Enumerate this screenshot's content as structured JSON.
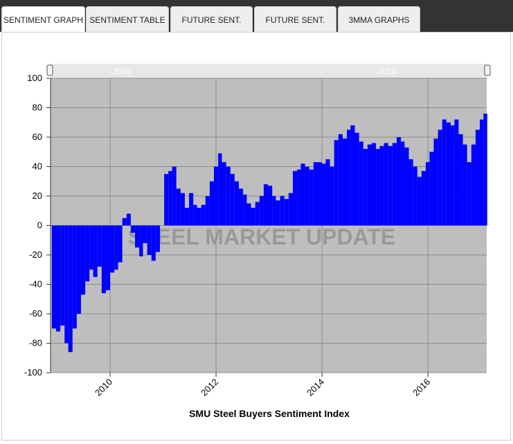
{
  "tabs": [
    "SENTIMENT GRAPH",
    "SENTIMENT TABLE",
    "FUTURE SENT.",
    "FUTURE SENT.",
    "3MMA GRAPHS"
  ],
  "chart_data": {
    "type": "bar",
    "title": "SMU Steel Buyers Sentiment Index",
    "watermark": "STEEL MARKET UPDATE",
    "navigator_ticks": [
      2010,
      2015
    ],
    "color": "#0000ff",
    "grid": true,
    "xlim": [
      2008.875,
      2017.11
    ],
    "xticks": [
      2010,
      2012,
      2014,
      2016
    ],
    "ylim": [
      -100,
      100
    ],
    "yticks": [
      -100,
      -80,
      -60,
      -40,
      -20,
      0,
      20,
      40,
      60,
      80,
      100
    ],
    "x": [
      2008.9,
      2008.98,
      2009.06,
      2009.14,
      2009.21,
      2009.29,
      2009.37,
      2009.45,
      2009.53,
      2009.61,
      2009.68,
      2009.76,
      2009.84,
      2009.92,
      2010.0,
      2010.08,
      2010.15,
      2010.23,
      2010.31,
      2010.39,
      2010.47,
      2010.55,
      2010.62,
      2010.7,
      2010.78,
      2010.86,
      2010.94,
      2011.02,
      2011.1,
      2011.17,
      2011.25,
      2011.33,
      2011.41,
      2011.49,
      2011.57,
      2011.64,
      2011.72,
      2011.8,
      2011.88,
      2011.96,
      2012.04,
      2012.11,
      2012.19,
      2012.27,
      2012.35,
      2012.43,
      2012.51,
      2012.58,
      2012.66,
      2012.74,
      2012.82,
      2012.9,
      2012.98,
      2013.06,
      2013.13,
      2013.21,
      2013.29,
      2013.37,
      2013.45,
      2013.53,
      2013.6,
      2013.68,
      2013.76,
      2013.84,
      2013.92,
      2014.0,
      2014.07,
      2014.15,
      2014.23,
      2014.31,
      2014.39,
      2014.47,
      2014.54,
      2014.62,
      2014.7,
      2014.78,
      2014.86,
      2014.94,
      2015.02,
      2015.09,
      2015.17,
      2015.25,
      2015.33,
      2015.41,
      2015.49,
      2015.56,
      2015.64,
      2015.72,
      2015.8,
      2015.88,
      2015.96,
      2016.03,
      2016.11,
      2016.19,
      2016.27,
      2016.35,
      2016.43,
      2016.5,
      2016.58,
      2016.66,
      2016.74,
      2016.82,
      2016.9,
      2016.98,
      2017.05
    ],
    "values": [
      -70,
      -72,
      -68,
      -80,
      -86,
      -70,
      -60,
      -47,
      -38,
      -30,
      -35,
      -28,
      -46,
      -44,
      -32,
      -30,
      -25,
      5,
      8,
      -5,
      -15,
      -21,
      -12,
      -20,
      -24,
      -18,
      0,
      35,
      37,
      40,
      25,
      22,
      12,
      22,
      14,
      12,
      14,
      20,
      30,
      40,
      49,
      43,
      40,
      35,
      30,
      25,
      21,
      15,
      12,
      16,
      20,
      28,
      27,
      20,
      17,
      20,
      18,
      22,
      37,
      38,
      42,
      40,
      38,
      43,
      43,
      42,
      45,
      40,
      58,
      62,
      59,
      65,
      68,
      63,
      57,
      52,
      55,
      56,
      52,
      54,
      56,
      54,
      56,
      60,
      57,
      53,
      45,
      40,
      33,
      37,
      43,
      50,
      59,
      65,
      72,
      70,
      68,
      72,
      62,
      55,
      43,
      55,
      65,
      72,
      76
    ]
  }
}
